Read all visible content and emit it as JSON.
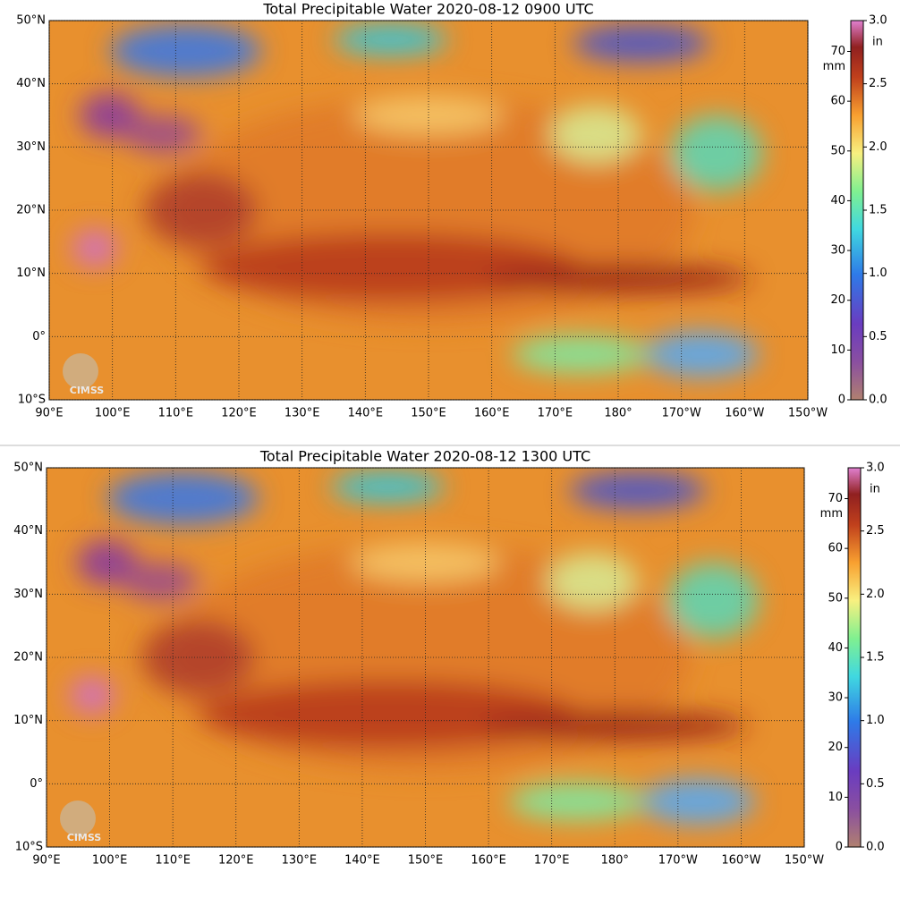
{
  "panels": [
    {
      "title": "Total Precipitable Water  2020-08-12 0900 UTC"
    },
    {
      "title": "Total Precipitable Water  2020-08-12 1300 UTC"
    }
  ],
  "lat_labels": [
    "50°N",
    "40°N",
    "30°N",
    "20°N",
    "10°N",
    "0°",
    "10°S"
  ],
  "lon_labels": [
    "90°E",
    "100°E",
    "110°E",
    "120°E",
    "130°E",
    "140°E",
    "150°E",
    "160°E",
    "170°E",
    "180°",
    "170°W",
    "160°W",
    "150°W"
  ],
  "colorbar": {
    "mm_unit": "mm",
    "in_unit": "in",
    "mm_ticks": [
      0,
      10,
      20,
      30,
      40,
      50,
      60,
      70
    ],
    "in_ticks": [
      {
        "value": 0,
        "label": "0.0"
      },
      {
        "value": 0.5,
        "label": "0.5"
      },
      {
        "value": 1,
        "label": "1.0"
      },
      {
        "value": 1.5,
        "label": "1.5"
      },
      {
        "value": 2,
        "label": "2.0"
      },
      {
        "value": 2.5,
        "label": "2.5"
      },
      {
        "value": 3,
        "label": "3.0"
      }
    ]
  },
  "logo": "CIMSS"
}
